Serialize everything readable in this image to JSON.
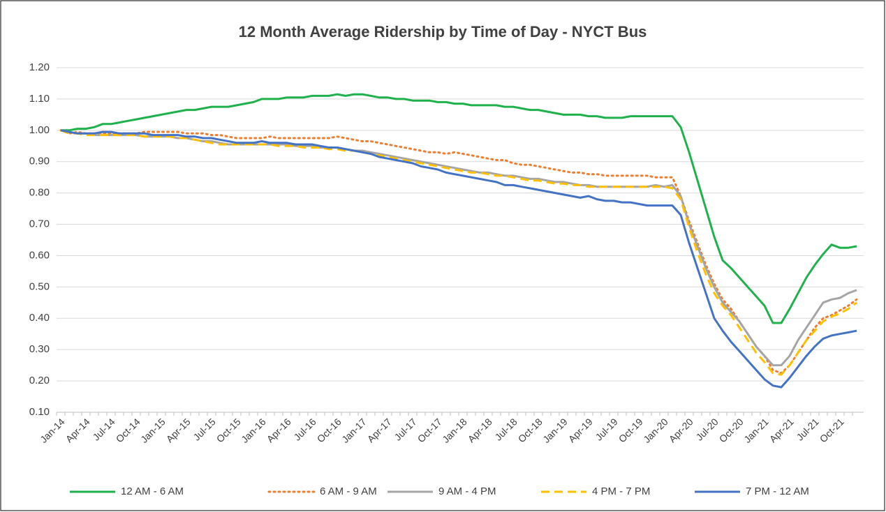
{
  "chart_data": {
    "type": "line",
    "title": "12 Month Average Ridership by Time of Day - NYCT Bus",
    "categories": [
      "Jan-14",
      null,
      null,
      "Apr-14",
      null,
      null,
      "Jul-14",
      null,
      null,
      "Oct-14",
      null,
      null,
      "Jan-15",
      null,
      null,
      "Apr-15",
      null,
      null,
      "Jul-15",
      null,
      null,
      "Oct-15",
      null,
      null,
      "Jan-16",
      null,
      null,
      "Apr-16",
      null,
      null,
      "Jul-16",
      null,
      null,
      "Oct-16",
      null,
      null,
      "Jan-17",
      null,
      null,
      "Apr-17",
      null,
      null,
      "Jul-17",
      null,
      null,
      "Oct-17",
      null,
      null,
      "Jan-18",
      null,
      null,
      "Apr-18",
      null,
      null,
      "Jul-18",
      null,
      null,
      "Oct-18",
      null,
      null,
      "Jan-19",
      null,
      null,
      "Apr-19",
      null,
      null,
      "Jul-19",
      null,
      null,
      "Oct-19",
      null,
      null,
      "Jan-20",
      null,
      null,
      "Apr-20",
      null,
      null,
      "Jul-20",
      null,
      null,
      "Oct-20",
      null,
      null,
      "Jan-21",
      null,
      null,
      "Apr-21",
      null,
      null,
      "Jul-21",
      null,
      null,
      "Oct-21",
      null,
      null
    ],
    "series": [
      {
        "name": "12 AM - 6 AM",
        "color": "#1fb14b",
        "style": "solid",
        "values": [
          1.0,
          1.0,
          1.005,
          1.005,
          1.01,
          1.02,
          1.02,
          1.025,
          1.03,
          1.035,
          1.04,
          1.045,
          1.05,
          1.055,
          1.06,
          1.065,
          1.065,
          1.07,
          1.075,
          1.075,
          1.075,
          1.08,
          1.085,
          1.09,
          1.1,
          1.1,
          1.1,
          1.105,
          1.105,
          1.105,
          1.11,
          1.11,
          1.11,
          1.115,
          1.11,
          1.115,
          1.115,
          1.11,
          1.105,
          1.105,
          1.1,
          1.1,
          1.095,
          1.095,
          1.095,
          1.09,
          1.09,
          1.085,
          1.085,
          1.08,
          1.08,
          1.08,
          1.08,
          1.075,
          1.075,
          1.07,
          1.065,
          1.065,
          1.06,
          1.055,
          1.05,
          1.05,
          1.05,
          1.045,
          1.045,
          1.04,
          1.04,
          1.04,
          1.045,
          1.045,
          1.045,
          1.045,
          1.045,
          1.045,
          1.01,
          0.93,
          0.84,
          0.75,
          0.66,
          0.585,
          0.56,
          0.53,
          0.5,
          0.47,
          0.44,
          0.385,
          0.385,
          0.43,
          0.48,
          0.53,
          0.57,
          0.605,
          0.635,
          0.625,
          0.625,
          0.63
        ]
      },
      {
        "name": "6 AM - 9 AM",
        "color": "#ed7d31",
        "style": "dotted",
        "values": [
          1.0,
          0.99,
          0.995,
          0.99,
          0.99,
          0.99,
          0.99,
          0.99,
          0.99,
          0.99,
          0.995,
          0.995,
          0.995,
          0.995,
          0.995,
          0.99,
          0.99,
          0.99,
          0.985,
          0.985,
          0.98,
          0.975,
          0.975,
          0.975,
          0.975,
          0.98,
          0.975,
          0.975,
          0.975,
          0.975,
          0.975,
          0.975,
          0.975,
          0.98,
          0.975,
          0.97,
          0.965,
          0.965,
          0.96,
          0.955,
          0.95,
          0.945,
          0.94,
          0.935,
          0.93,
          0.93,
          0.925,
          0.93,
          0.925,
          0.92,
          0.915,
          0.91,
          0.905,
          0.905,
          0.895,
          0.89,
          0.89,
          0.885,
          0.88,
          0.875,
          0.87,
          0.865,
          0.865,
          0.86,
          0.86,
          0.855,
          0.855,
          0.855,
          0.855,
          0.855,
          0.855,
          0.85,
          0.85,
          0.85,
          0.79,
          0.71,
          0.64,
          0.57,
          0.51,
          0.46,
          0.43,
          0.39,
          0.35,
          0.31,
          0.28,
          0.235,
          0.225,
          0.25,
          0.29,
          0.33,
          0.37,
          0.4,
          0.41,
          0.425,
          0.44,
          0.46
        ]
      },
      {
        "name": "9 AM - 4 PM",
        "color": "#a5a5a5",
        "style": "solid",
        "values": [
          1.0,
          0.995,
          0.99,
          0.99,
          0.985,
          0.985,
          0.985,
          0.985,
          0.985,
          0.985,
          0.98,
          0.98,
          0.98,
          0.98,
          0.975,
          0.975,
          0.97,
          0.965,
          0.965,
          0.96,
          0.955,
          0.955,
          0.955,
          0.955,
          0.955,
          0.955,
          0.955,
          0.955,
          0.95,
          0.95,
          0.95,
          0.945,
          0.945,
          0.945,
          0.94,
          0.935,
          0.935,
          0.93,
          0.925,
          0.92,
          0.915,
          0.91,
          0.905,
          0.9,
          0.895,
          0.89,
          0.885,
          0.88,
          0.875,
          0.87,
          0.865,
          0.865,
          0.86,
          0.855,
          0.855,
          0.85,
          0.845,
          0.845,
          0.84,
          0.835,
          0.835,
          0.83,
          0.825,
          0.825,
          0.82,
          0.82,
          0.82,
          0.82,
          0.82,
          0.82,
          0.82,
          0.825,
          0.82,
          0.825,
          0.79,
          0.7,
          0.63,
          0.56,
          0.5,
          0.45,
          0.42,
          0.39,
          0.35,
          0.31,
          0.28,
          0.25,
          0.25,
          0.28,
          0.33,
          0.37,
          0.41,
          0.45,
          0.46,
          0.465,
          0.48,
          0.49
        ]
      },
      {
        "name": "4 PM - 7 PM",
        "color": "#ffc000",
        "style": "dashed",
        "values": [
          1.0,
          0.99,
          0.99,
          0.985,
          0.985,
          0.985,
          0.985,
          0.985,
          0.985,
          0.985,
          0.98,
          0.98,
          0.98,
          0.98,
          0.975,
          0.975,
          0.97,
          0.965,
          0.96,
          0.955,
          0.955,
          0.955,
          0.955,
          0.955,
          0.955,
          0.955,
          0.95,
          0.95,
          0.95,
          0.945,
          0.945,
          0.945,
          0.94,
          0.94,
          0.935,
          0.935,
          0.93,
          0.925,
          0.92,
          0.915,
          0.91,
          0.905,
          0.9,
          0.895,
          0.89,
          0.885,
          0.88,
          0.875,
          0.87,
          0.865,
          0.865,
          0.86,
          0.855,
          0.855,
          0.85,
          0.845,
          0.84,
          0.84,
          0.835,
          0.83,
          0.83,
          0.825,
          0.825,
          0.82,
          0.82,
          0.82,
          0.82,
          0.82,
          0.82,
          0.82,
          0.82,
          0.82,
          0.82,
          0.815,
          0.78,
          0.69,
          0.61,
          0.54,
          0.48,
          0.44,
          0.41,
          0.37,
          0.33,
          0.29,
          0.26,
          0.225,
          0.22,
          0.25,
          0.29,
          0.33,
          0.36,
          0.39,
          0.405,
          0.415,
          0.43,
          0.45
        ]
      },
      {
        "name": "7 PM - 12 AM",
        "color": "#4472c4",
        "style": "solid",
        "values": [
          1.0,
          0.995,
          0.99,
          0.99,
          0.99,
          0.995,
          0.995,
          0.99,
          0.99,
          0.99,
          0.99,
          0.985,
          0.985,
          0.985,
          0.985,
          0.98,
          0.98,
          0.975,
          0.975,
          0.97,
          0.965,
          0.96,
          0.96,
          0.96,
          0.965,
          0.96,
          0.96,
          0.96,
          0.955,
          0.955,
          0.955,
          0.95,
          0.945,
          0.945,
          0.94,
          0.935,
          0.93,
          0.925,
          0.915,
          0.91,
          0.905,
          0.9,
          0.895,
          0.885,
          0.88,
          0.875,
          0.865,
          0.86,
          0.855,
          0.85,
          0.845,
          0.84,
          0.835,
          0.825,
          0.825,
          0.82,
          0.815,
          0.81,
          0.805,
          0.8,
          0.795,
          0.79,
          0.785,
          0.79,
          0.78,
          0.775,
          0.775,
          0.77,
          0.77,
          0.765,
          0.76,
          0.76,
          0.76,
          0.76,
          0.73,
          0.64,
          0.56,
          0.48,
          0.4,
          0.36,
          0.325,
          0.295,
          0.265,
          0.235,
          0.205,
          0.185,
          0.18,
          0.21,
          0.245,
          0.28,
          0.31,
          0.335,
          0.345,
          0.35,
          0.355,
          0.36
        ]
      }
    ],
    "ylim": [
      0.1,
      1.2
    ],
    "yticks": [
      {
        "value": 0.1,
        "label": "0.10"
      },
      {
        "value": 0.2,
        "label": "0.20"
      },
      {
        "value": 0.3,
        "label": "0.30"
      },
      {
        "value": 0.4,
        "label": "0.40"
      },
      {
        "value": 0.5,
        "label": "0.50"
      },
      {
        "value": 0.6,
        "label": "0.60"
      },
      {
        "value": 0.7,
        "label": "0.70"
      },
      {
        "value": 0.8,
        "label": "0.80"
      },
      {
        "value": 0.9,
        "label": "0.90"
      },
      {
        "value": 1.0,
        "label": "1.00"
      },
      {
        "value": 1.1,
        "label": "1.10"
      },
      {
        "value": 1.2,
        "label": "1.20"
      }
    ],
    "grid": true,
    "legend": "bottom"
  }
}
